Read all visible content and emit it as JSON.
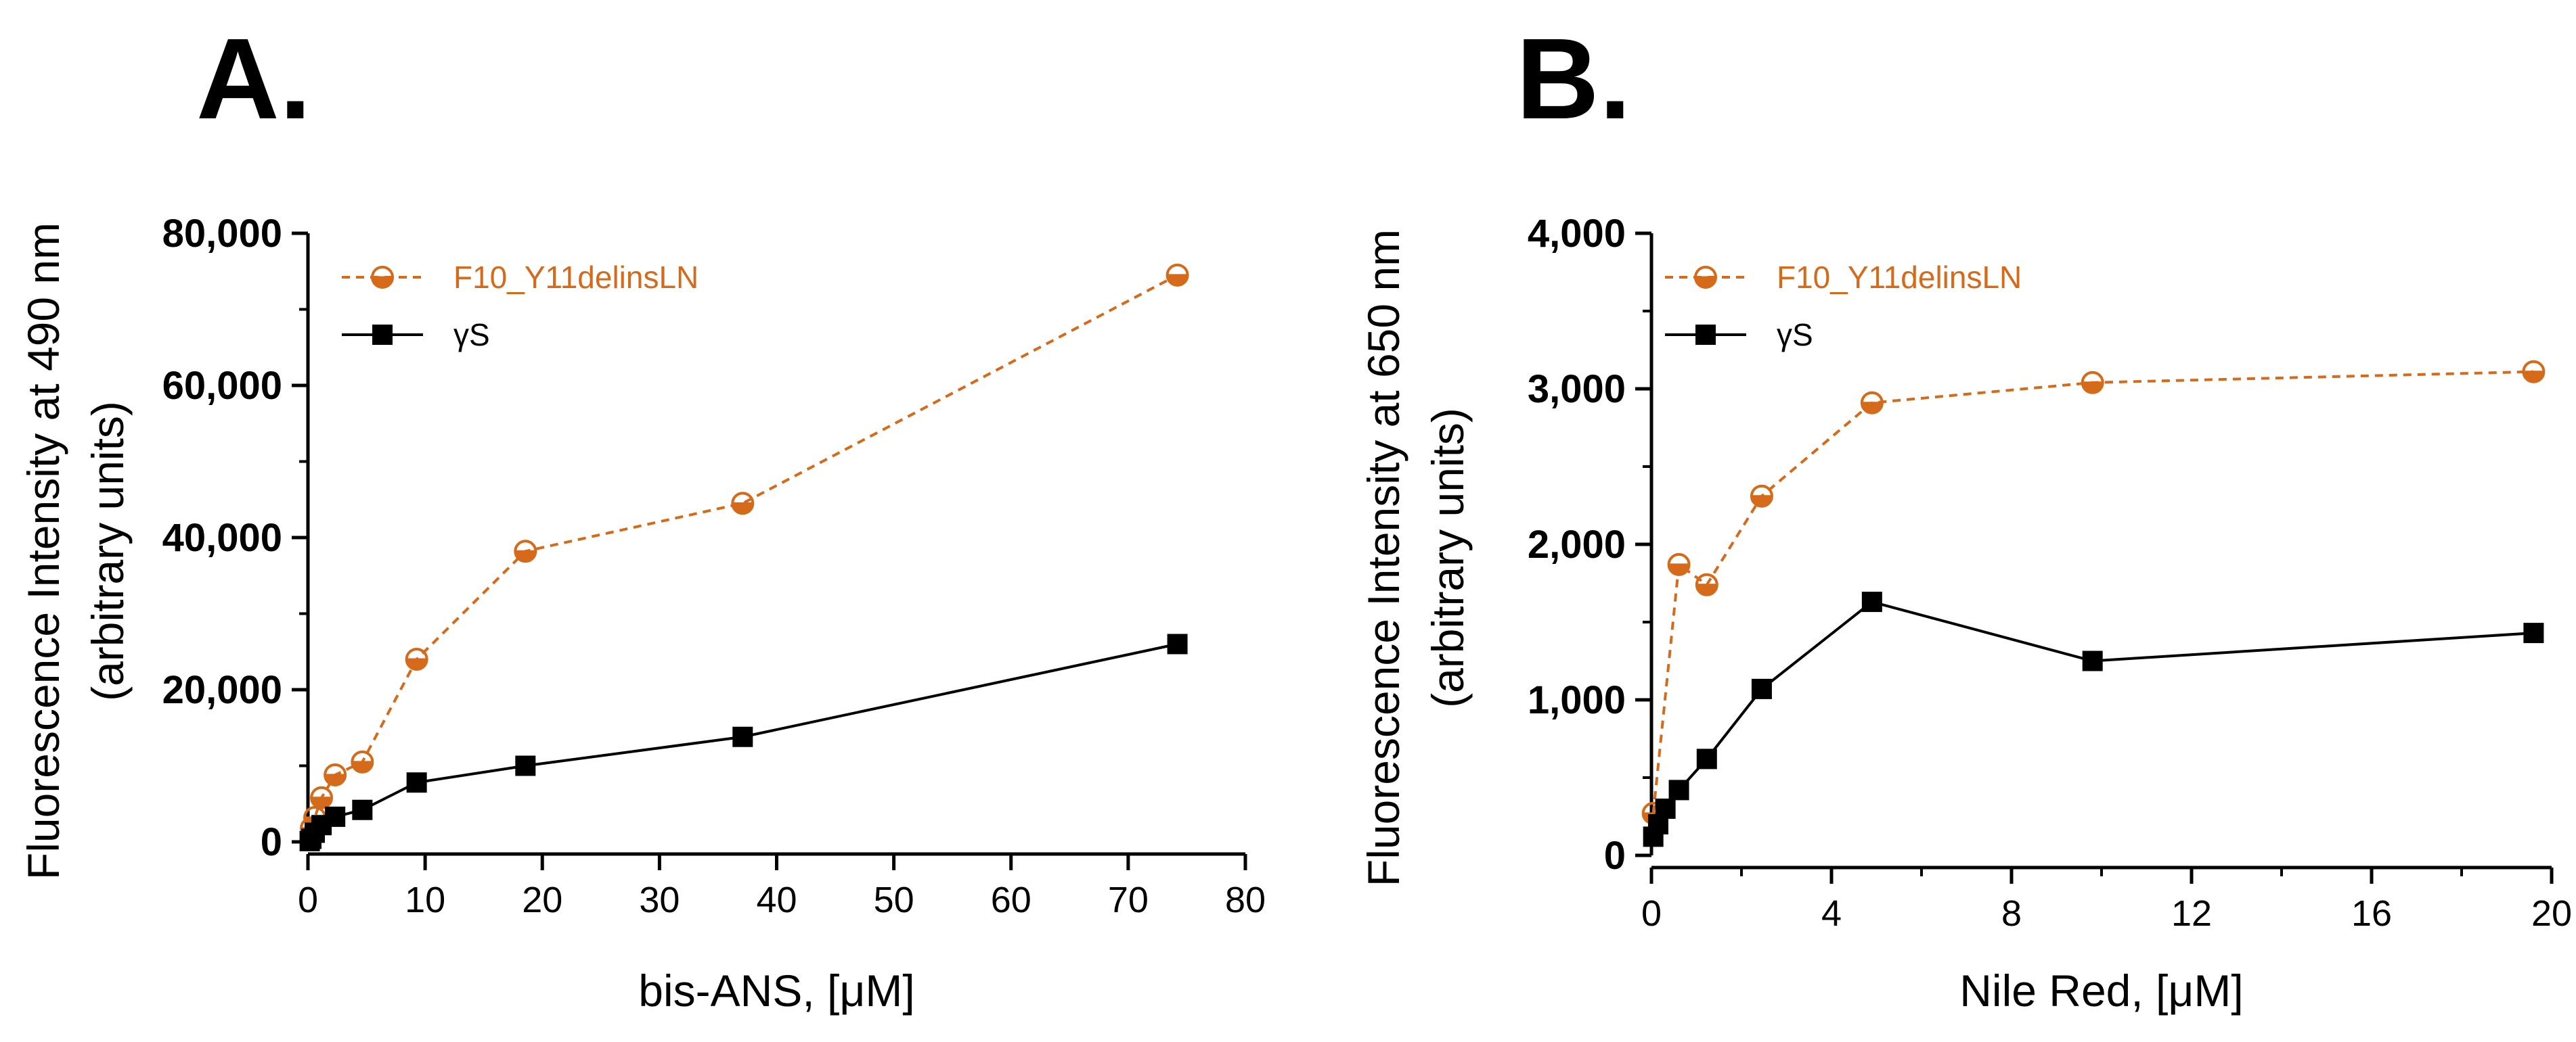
{
  "colors": {
    "orange": "#d46a1a",
    "black": "#000000"
  },
  "chart_data": [
    {
      "type": "line",
      "panel_label": "A.",
      "title": "",
      "xlabel": "bis-ANS, [μM]",
      "ylabel_line1": "Fluorescence Intensity at 490 nm",
      "ylabel_line2": "(arbitrary units)",
      "xlim": [
        0,
        80
      ],
      "ylim": [
        0,
        80000
      ],
      "xticks": [
        0,
        10,
        20,
        30,
        40,
        50,
        60,
        70,
        80
      ],
      "xtick_labels": [
        "0",
        "10",
        "20",
        "30",
        "40",
        "50",
        "60",
        "70",
        "80"
      ],
      "yticks": [
        0,
        20000,
        40000,
        60000,
        80000
      ],
      "ytick_labels": [
        "0",
        "20,000",
        "40,000",
        "60,000",
        "80,000"
      ],
      "yminor": [
        10000,
        30000,
        50000,
        70000
      ],
      "legend_position": "top-left",
      "series": [
        {
          "name": "F10_Y11delinsLN",
          "marker": "half-circle",
          "line": "dashed",
          "color": "#d46a1a",
          "x": [
            0.29,
            0.58,
            1.16,
            2.32,
            4.64,
            9.28,
            18.56,
            37.1,
            74.2
          ],
          "y": [
            1800,
            3200,
            5800,
            8800,
            10500,
            24000,
            38200,
            44500,
            74500
          ]
        },
        {
          "name": "γS",
          "marker": "square",
          "line": "solid",
          "color": "#000000",
          "x": [
            0.15,
            0.29,
            0.58,
            1.16,
            2.32,
            4.64,
            9.28,
            18.56,
            37.1,
            74.2
          ],
          "y": [
            100,
            400,
            1200,
            2200,
            3300,
            4200,
            7800,
            10000,
            13800,
            26000
          ]
        }
      ]
    },
    {
      "type": "line",
      "panel_label": "B.",
      "title": "",
      "xlabel": "Nile Red, [μM]",
      "ylabel_line1": "Fluorescence Intensity at 650 nm",
      "ylabel_line2": "(arbitrary units)",
      "xlim": [
        0,
        20
      ],
      "ylim": [
        0,
        4000
      ],
      "xticks": [
        0,
        4,
        8,
        12,
        16,
        20
      ],
      "xtick_labels": [
        "0",
        "4",
        "8",
        "12",
        "16",
        "20"
      ],
      "xminor": [
        2,
        6,
        10,
        14,
        18
      ],
      "yticks": [
        0,
        1000,
        2000,
        3000,
        4000
      ],
      "ytick_labels": [
        "0",
        "1,000",
        "2,000",
        "3,000",
        "4,000"
      ],
      "yminor": [
        500,
        1500,
        2500,
        3500
      ],
      "legend_position": "top-left",
      "series": [
        {
          "name": "F10_Y11delinsLN",
          "marker": "half-circle",
          "line": "dashed",
          "color": "#d46a1a",
          "x": [
            0.04,
            0.61,
            1.23,
            2.45,
            4.9,
            9.8,
            19.6
          ],
          "y": [
            270,
            1870,
            1740,
            2310,
            2910,
            3040,
            3110
          ]
        },
        {
          "name": "γS",
          "marker": "square",
          "line": "solid",
          "color": "#000000",
          "x": [
            0.04,
            0.15,
            0.31,
            0.61,
            1.23,
            2.45,
            4.9,
            9.8,
            19.6
          ],
          "y": [
            120,
            200,
            300,
            420,
            620,
            1070,
            1630,
            1250,
            1430
          ]
        }
      ]
    }
  ]
}
